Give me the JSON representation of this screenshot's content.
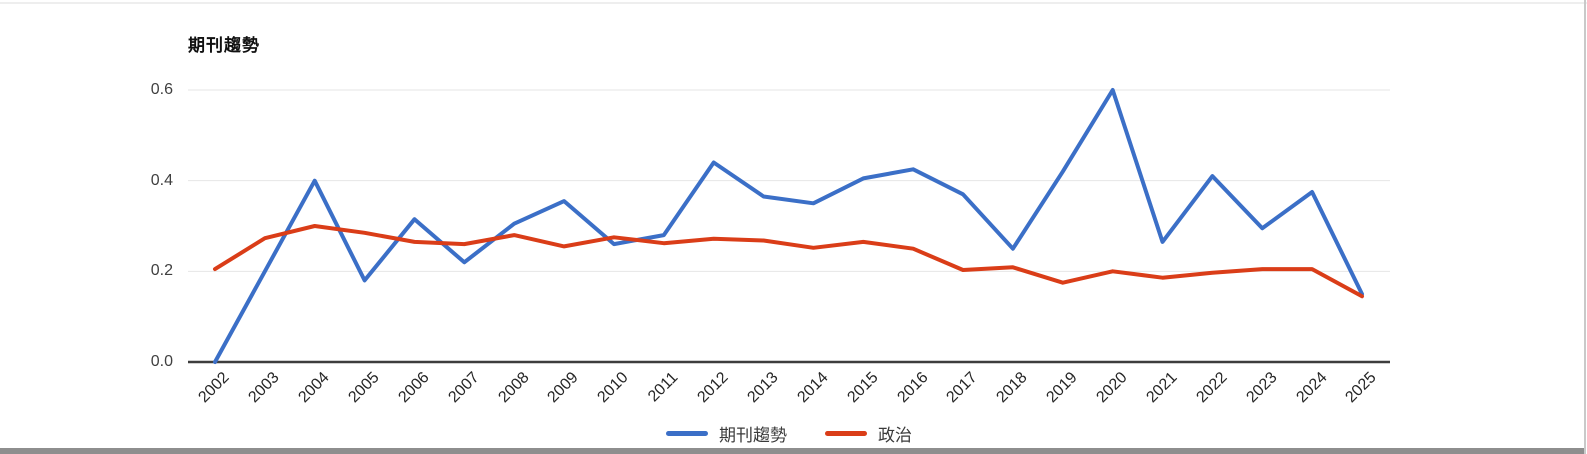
{
  "page": {
    "background": "#ffffff",
    "top_border_color": "#eeeeee",
    "right_border_color": "#c9c9c9",
    "bottom_bar_color": "#8e8e8e"
  },
  "chart_data": {
    "type": "line",
    "title": "期刊趨勢",
    "x": [
      2002,
      2003,
      2004,
      2005,
      2006,
      2007,
      2008,
      2009,
      2010,
      2011,
      2012,
      2013,
      2014,
      2015,
      2016,
      2017,
      2018,
      2019,
      2020,
      2021,
      2022,
      2023,
      2024,
      2025
    ],
    "series": [
      {
        "name": "期刊趨勢",
        "color": "#3B6FC7",
        "values": [
          0.0,
          0.2,
          0.4,
          0.18,
          0.315,
          0.22,
          0.305,
          0.355,
          0.26,
          0.28,
          0.44,
          0.365,
          0.35,
          0.405,
          0.425,
          0.37,
          0.25,
          0.42,
          0.6,
          0.265,
          0.41,
          0.295,
          0.375,
          0.15
        ]
      },
      {
        "name": "政治",
        "color": "#DA3D18",
        "values": [
          0.205,
          0.273,
          0.3,
          0.285,
          0.265,
          0.26,
          0.28,
          0.255,
          0.275,
          0.262,
          0.272,
          0.268,
          0.252,
          0.265,
          0.25,
          0.203,
          0.209,
          0.175,
          0.2,
          0.186,
          0.197,
          0.205,
          0.205,
          0.145
        ]
      }
    ],
    "ylim": [
      0,
      0.6
    ],
    "yticks": [
      0.0,
      0.2,
      0.4,
      0.6
    ],
    "ytick_labels": [
      "0.0",
      "0.2",
      "0.4",
      "0.6"
    ],
    "grid": "horizontal-only",
    "grid_color": "#e6e6e6",
    "axis_color": "#3d3d3d",
    "x_label_rotation_deg": 45,
    "legend_position": "bottom-center"
  }
}
